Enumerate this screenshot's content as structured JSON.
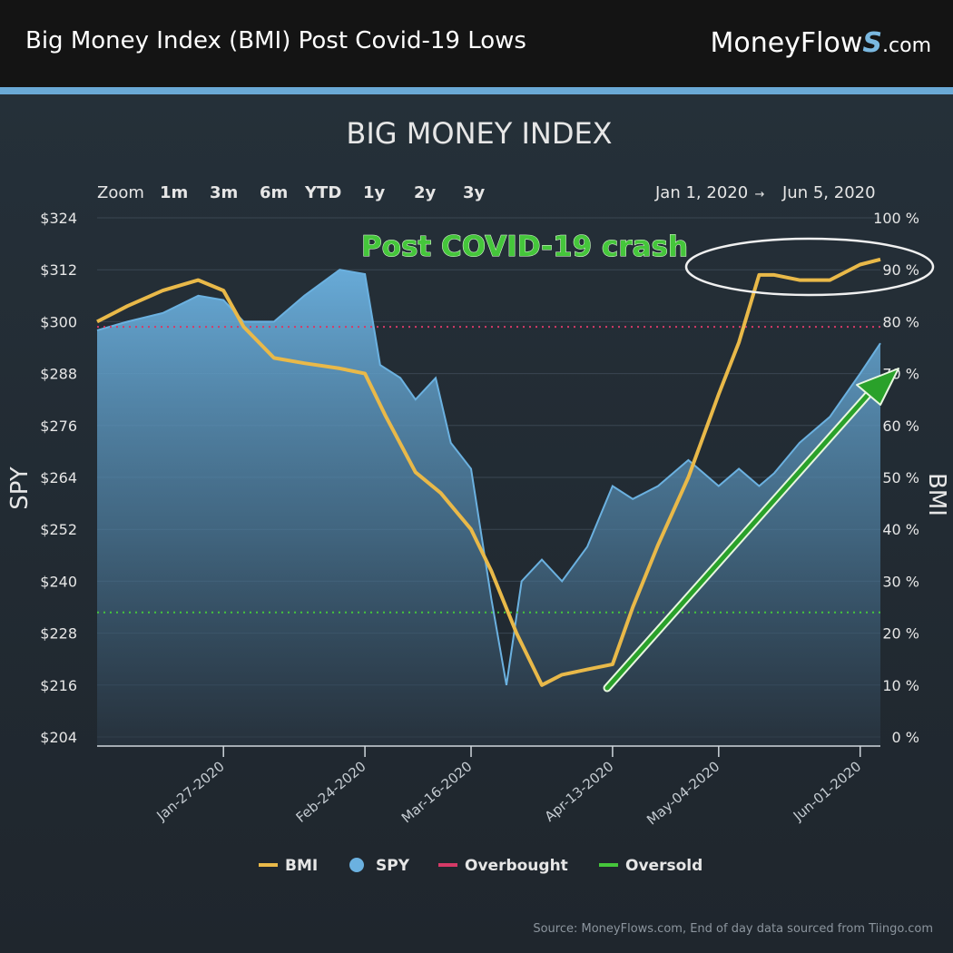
{
  "header": {
    "title": "Big Money Index (BMI) Post Covid-19 Lows",
    "brand_main": "MoneyFlow",
    "brand_s": "S",
    "brand_tld": ".com"
  },
  "zoom": {
    "label": "Zoom",
    "options": [
      "1m",
      "3m",
      "6m",
      "YTD",
      "1y",
      "2y",
      "3y"
    ]
  },
  "date_range": {
    "from": "Jan 1, 2020",
    "arrow": "→",
    "to": "Jun 5, 2020"
  },
  "footer": {
    "source": "Source: MoneyFlows.com, End of day data sourced from Tiingo.com"
  },
  "colors": {
    "bmi": "#e9b949",
    "spy_line": "#6bb1e0",
    "overbought": "#d63a67",
    "oversold": "#45c63b",
    "annotation_text": "#45c63b",
    "arrow": "#2aa12a"
  },
  "chart_data": {
    "type": "line",
    "title": "BIG MONEY INDEX",
    "ylabel_left": "SPY",
    "ylabel_right": "BMI",
    "x_ticks": [
      "Jan-27-2020",
      "Feb-24-2020",
      "Mar-16-2020",
      "Apr-13-2020",
      "May-04-2020",
      "Jun-01-2020"
    ],
    "y_left_ticks": [
      "$324",
      "$312",
      "$300",
      "$288",
      "$276",
      "$264",
      "$252",
      "$240",
      "$228",
      "$216",
      "$204"
    ],
    "y_right_ticks": [
      "100 %",
      "90 %",
      "80 %",
      "70 %",
      "60 %",
      "50 %",
      "40 %",
      "30 %",
      "20 %",
      "10 %",
      "0 %"
    ],
    "y_left_range": [
      204,
      324
    ],
    "y_right_range": [
      0,
      100
    ],
    "overbought_level": 79,
    "oversold_level": 24,
    "legend": [
      "BMI",
      "SPY",
      "Overbought",
      "Oversold"
    ],
    "legend_position": "bottom",
    "annotation": "Post COVID-19 crash",
    "series": [
      {
        "name": "BMI",
        "x": [
          "2020-01-02",
          "2020-01-08",
          "2020-01-15",
          "2020-01-22",
          "2020-01-27",
          "2020-01-31",
          "2020-02-06",
          "2020-02-12",
          "2020-02-19",
          "2020-02-24",
          "2020-02-28",
          "2020-03-05",
          "2020-03-10",
          "2020-03-16",
          "2020-03-20",
          "2020-03-25",
          "2020-03-30",
          "2020-04-03",
          "2020-04-08",
          "2020-04-13",
          "2020-04-17",
          "2020-04-22",
          "2020-04-28",
          "2020-05-04",
          "2020-05-08",
          "2020-05-12",
          "2020-05-15",
          "2020-05-20",
          "2020-05-26",
          "2020-06-01",
          "2020-06-05"
        ],
        "y": [
          80,
          83,
          86,
          88,
          86,
          79,
          73,
          72,
          71,
          70,
          62,
          51,
          47,
          40,
          32,
          20,
          10,
          12,
          13,
          14,
          25,
          37,
          50,
          66,
          76,
          89,
          89,
          88,
          88,
          91,
          92
        ]
      },
      {
        "name": "SPY",
        "x": [
          "2020-01-02",
          "2020-01-08",
          "2020-01-15",
          "2020-01-22",
          "2020-01-27",
          "2020-01-31",
          "2020-02-06",
          "2020-02-12",
          "2020-02-19",
          "2020-02-24",
          "2020-02-27",
          "2020-03-02",
          "2020-03-05",
          "2020-03-09",
          "2020-03-12",
          "2020-03-16",
          "2020-03-20",
          "2020-03-23",
          "2020-03-26",
          "2020-03-30",
          "2020-04-03",
          "2020-04-08",
          "2020-04-13",
          "2020-04-17",
          "2020-04-22",
          "2020-04-28",
          "2020-05-04",
          "2020-05-08",
          "2020-05-12",
          "2020-05-15",
          "2020-05-20",
          "2020-05-26",
          "2020-06-01",
          "2020-06-05"
        ],
        "y": [
          298,
          300,
          302,
          306,
          305,
          300,
          300,
          306,
          312,
          311,
          290,
          287,
          282,
          287,
          272,
          266,
          236,
          216,
          240,
          245,
          240,
          248,
          262,
          259,
          262,
          268,
          262,
          266,
          262,
          265,
          272,
          278,
          288,
          295
        ]
      }
    ]
  }
}
